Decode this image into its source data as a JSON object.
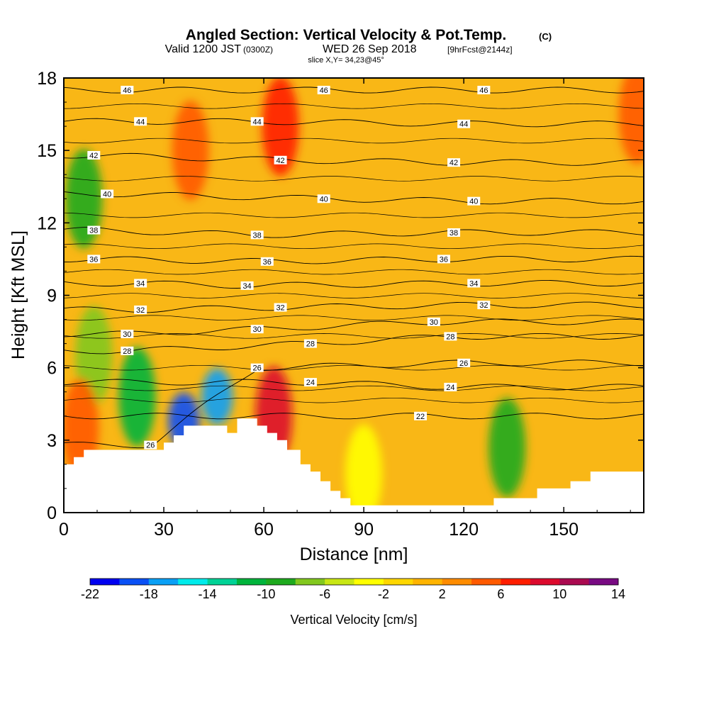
{
  "header": {
    "title_main": "Angled Section: Vertical Velocity & Pot.Temp.",
    "title_units": "(C)",
    "valid_label": "Valid 1200 JST",
    "valid_zulu": "(0300Z)",
    "valid_date": "WED 26 Sep 2018",
    "forecast_info": "[9hrFcst@2144z]",
    "slice_info": "slice X,Y= 34,23@45°"
  },
  "colors": {
    "terrain": "#ffffff",
    "contour_line": "#000000",
    "background_field": "#f9b716"
  },
  "chart_data": {
    "type": "heatmap",
    "xlabel": "Distance [nm]",
    "ylabel": "Height [Kft MSL]",
    "xlim": [
      0,
      174
    ],
    "ylim": [
      0,
      18
    ],
    "x_ticks": [
      0,
      30,
      60,
      90,
      120,
      150
    ],
    "y_ticks": [
      0,
      3,
      6,
      9,
      12,
      15,
      18
    ],
    "x_tick_labels": [
      "0",
      "30",
      "60",
      "90",
      "120",
      "150"
    ],
    "y_tick_labels": [
      "0",
      "3",
      "6",
      "9",
      "12",
      "15",
      "18"
    ],
    "colorbar": {
      "label": "Vertical Velocity [cm/s]",
      "levels": [
        -22,
        -20,
        -18,
        -16,
        -14,
        -12,
        -10,
        -8,
        -6,
        -4,
        -2,
        0,
        2,
        4,
        6,
        8,
        10,
        12,
        14
      ],
      "tick_values": [
        -22,
        -18,
        -14,
        -10,
        -6,
        -2,
        2,
        6,
        10,
        14
      ],
      "tick_labels": [
        "-22",
        "-18",
        "-14",
        "-10",
        "-6",
        "-2",
        "2",
        "6",
        "10",
        "14"
      ],
      "colors": [
        "#0000f0",
        "#0a50f5",
        "#0aa0f5",
        "#00ebeb",
        "#00d296",
        "#00b43c",
        "#1eaa1e",
        "#82c81e",
        "#c8e614",
        "#ffff00",
        "#ffd700",
        "#ffb400",
        "#ff8c00",
        "#ff5a00",
        "#ff1e00",
        "#dc0a2d",
        "#aa0a50",
        "#780a82"
      ]
    },
    "terrain_profile": {
      "x": [
        0,
        3,
        3,
        6,
        6,
        30,
        30,
        33,
        33,
        36,
        36,
        49,
        49,
        52,
        52,
        58,
        58,
        61,
        61,
        64,
        64,
        67,
        67,
        71,
        71,
        74,
        74,
        77,
        77,
        80,
        80,
        83,
        83,
        86,
        86,
        89,
        89,
        92,
        92,
        129,
        129,
        142,
        142,
        152,
        152,
        158,
        158,
        174
      ],
      "y": [
        2.0,
        2.0,
        2.3,
        2.3,
        2.6,
        2.6,
        2.9,
        2.9,
        3.2,
        3.2,
        3.6,
        3.6,
        3.3,
        3.3,
        3.9,
        3.9,
        3.6,
        3.6,
        3.3,
        3.3,
        3.0,
        3.0,
        2.6,
        2.6,
        2.0,
        2.0,
        1.7,
        1.7,
        1.3,
        1.3,
        0.9,
        0.9,
        0.6,
        0.6,
        0.3,
        0.3,
        0.3,
        0.3,
        0.3,
        0.3,
        0.6,
        0.6,
        1.0,
        1.0,
        1.3,
        1.3,
        1.7,
        1.7
      ]
    },
    "vertical_velocity_features": [
      {
        "x": 22,
        "y": 4.8,
        "value": -12
      },
      {
        "x": 46,
        "y": 4.8,
        "value": -18
      },
      {
        "x": 36,
        "y": 3.8,
        "value": -20
      },
      {
        "x": 6,
        "y": 13.0,
        "value": -10
      },
      {
        "x": 133,
        "y": 2.7,
        "value": -10
      },
      {
        "x": 9,
        "y": 6.5,
        "value": -8
      },
      {
        "x": 63,
        "y": 4.0,
        "value": 8
      },
      {
        "x": 65,
        "y": 16.0,
        "value": 6
      },
      {
        "x": 38,
        "y": 15.0,
        "value": 4
      },
      {
        "x": 5,
        "y": 3.5,
        "value": 4
      },
      {
        "x": 172,
        "y": 16.5,
        "value": 4
      },
      {
        "x": 90,
        "y": 1.6,
        "value": -4
      }
    ],
    "potential_temperature": {
      "levels": [
        22,
        24,
        26,
        28,
        30,
        32,
        34,
        36,
        38,
        40,
        42,
        44,
        46
      ],
      "labels": [
        {
          "text": "22",
          "x": 107,
          "y": 4.0
        },
        {
          "text": "24",
          "x": 74,
          "y": 5.4
        },
        {
          "text": "24",
          "x": 116,
          "y": 5.2
        },
        {
          "text": "26",
          "x": 26,
          "y": 2.8
        },
        {
          "text": "26",
          "x": 58,
          "y": 6.0
        },
        {
          "text": "26",
          "x": 120,
          "y": 6.2
        },
        {
          "text": "28",
          "x": 19,
          "y": 6.7
        },
        {
          "text": "28",
          "x": 74,
          "y": 7.0
        },
        {
          "text": "28",
          "x": 116,
          "y": 7.3
        },
        {
          "text": "30",
          "x": 19,
          "y": 7.4
        },
        {
          "text": "30",
          "x": 58,
          "y": 7.6
        },
        {
          "text": "30",
          "x": 111,
          "y": 7.9
        },
        {
          "text": "32",
          "x": 23,
          "y": 8.4
        },
        {
          "text": "32",
          "x": 65,
          "y": 8.5
        },
        {
          "text": "32",
          "x": 126,
          "y": 8.6
        },
        {
          "text": "34",
          "x": 23,
          "y": 9.5
        },
        {
          "text": "34",
          "x": 55,
          "y": 9.4
        },
        {
          "text": "34",
          "x": 123,
          "y": 9.5
        },
        {
          "text": "36",
          "x": 9,
          "y": 10.5
        },
        {
          "text": "36",
          "x": 61,
          "y": 10.4
        },
        {
          "text": "36",
          "x": 114,
          "y": 10.5
        },
        {
          "text": "38",
          "x": 9,
          "y": 11.7
        },
        {
          "text": "38",
          "x": 58,
          "y": 11.5
        },
        {
          "text": "38",
          "x": 117,
          "y": 11.6
        },
        {
          "text": "40",
          "x": 13,
          "y": 13.2
        },
        {
          "text": "40",
          "x": 78,
          "y": 13.0
        },
        {
          "text": "40",
          "x": 123,
          "y": 12.9
        },
        {
          "text": "42",
          "x": 9,
          "y": 14.8
        },
        {
          "text": "42",
          "x": 65,
          "y": 14.6
        },
        {
          "text": "42",
          "x": 117,
          "y": 14.5
        },
        {
          "text": "44",
          "x": 23,
          "y": 16.2
        },
        {
          "text": "44",
          "x": 58,
          "y": 16.2
        },
        {
          "text": "44",
          "x": 120,
          "y": 16.1
        },
        {
          "text": "46",
          "x": 19,
          "y": 17.5
        },
        {
          "text": "46",
          "x": 78,
          "y": 17.5
        },
        {
          "text": "46",
          "x": 126,
          "y": 17.5
        }
      ]
    }
  }
}
